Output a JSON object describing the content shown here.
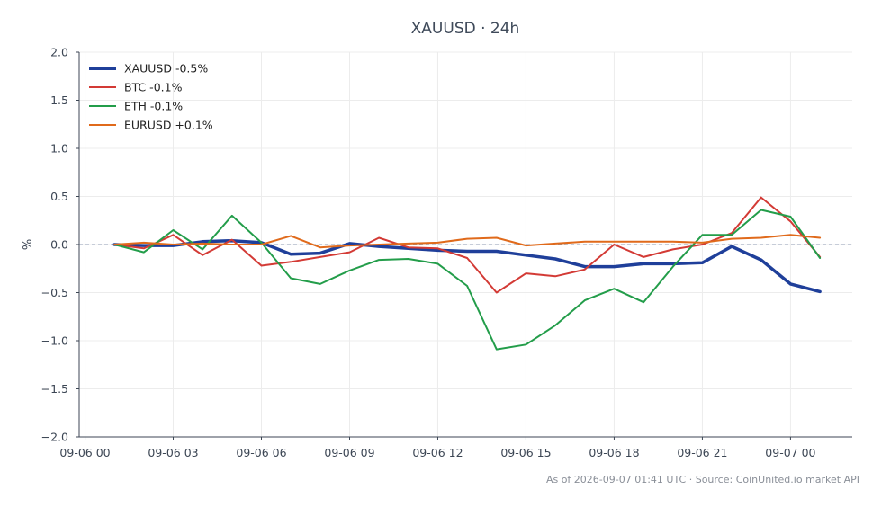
{
  "chart_data": {
    "type": "line",
    "title": "XAUUSD · 24h",
    "xlabel": "",
    "ylabel": "%",
    "x_tick_labels": [
      "09-06 00",
      "09-06 03",
      "09-06 06",
      "09-06 09",
      "09-06 12",
      "09-06 15",
      "09-06 18",
      "09-06 21",
      "09-07 00"
    ],
    "x_tick_hours": [
      0,
      3,
      6,
      9,
      12,
      15,
      18,
      21,
      24
    ],
    "x_range_hours": [
      -0.2,
      26.1
    ],
    "y_ticks": [
      2.0,
      1.5,
      1.0,
      0.5,
      0.0,
      -0.5,
      -1.0,
      -1.5,
      -2.0
    ],
    "y_tick_labels": [
      "2.0",
      "1.5",
      "1.0",
      "0.5",
      "0.0",
      "−0.5",
      "−1.0",
      "−1.5",
      "−2.0"
    ],
    "ylim": [
      -2.0,
      2.0
    ],
    "grid": true,
    "baseline": 0.0,
    "legend_position": "top-left",
    "x_hours": [
      1,
      2,
      3,
      4,
      5,
      6,
      7,
      8,
      9,
      10,
      11,
      12,
      13,
      14,
      15,
      16,
      17,
      18,
      19,
      20,
      21,
      22,
      23,
      24,
      25
    ],
    "series": [
      {
        "name": "XAUUSD -0.5%",
        "color": "#1f3f9a",
        "emphasis": true,
        "values": [
          0.0,
          -0.01,
          -0.01,
          0.03,
          0.04,
          0.02,
          -0.1,
          -0.09,
          0.01,
          -0.02,
          -0.04,
          -0.06,
          -0.07,
          -0.07,
          -0.11,
          -0.15,
          -0.23,
          -0.23,
          -0.2,
          -0.2,
          -0.19,
          -0.02,
          -0.16,
          -0.41,
          -0.49
        ]
      },
      {
        "name": "BTC -0.1%",
        "color": "#d33a35",
        "emphasis": false,
        "values": [
          0.0,
          -0.04,
          0.1,
          -0.11,
          0.05,
          -0.22,
          -0.18,
          -0.13,
          -0.08,
          0.07,
          -0.03,
          -0.04,
          -0.14,
          -0.5,
          -0.3,
          -0.33,
          -0.26,
          0.0,
          -0.13,
          -0.05,
          0.0,
          0.12,
          0.49,
          0.24,
          -0.13
        ]
      },
      {
        "name": "ETH -0.1%",
        "color": "#239d4a",
        "emphasis": false,
        "values": [
          0.0,
          -0.08,
          0.15,
          -0.05,
          0.3,
          0.02,
          -0.35,
          -0.41,
          -0.27,
          -0.16,
          -0.15,
          -0.2,
          -0.43,
          -1.09,
          -1.04,
          -0.84,
          -0.58,
          -0.46,
          -0.6,
          -0.23,
          0.1,
          0.1,
          0.36,
          0.29,
          -0.14
        ]
      },
      {
        "name": "EURUSD +0.1%",
        "color": "#e06a1b",
        "emphasis": false,
        "values": [
          0.0,
          0.02,
          0.0,
          0.01,
          0.0,
          0.0,
          0.09,
          -0.03,
          -0.01,
          0.0,
          0.01,
          0.02,
          0.06,
          0.07,
          -0.01,
          0.01,
          0.03,
          0.03,
          0.03,
          0.03,
          0.02,
          0.06,
          0.07,
          0.1,
          0.07
        ]
      }
    ],
    "footer": "As of 2026-09-07 01:41 UTC · Source: CoinUnited.io market API"
  }
}
